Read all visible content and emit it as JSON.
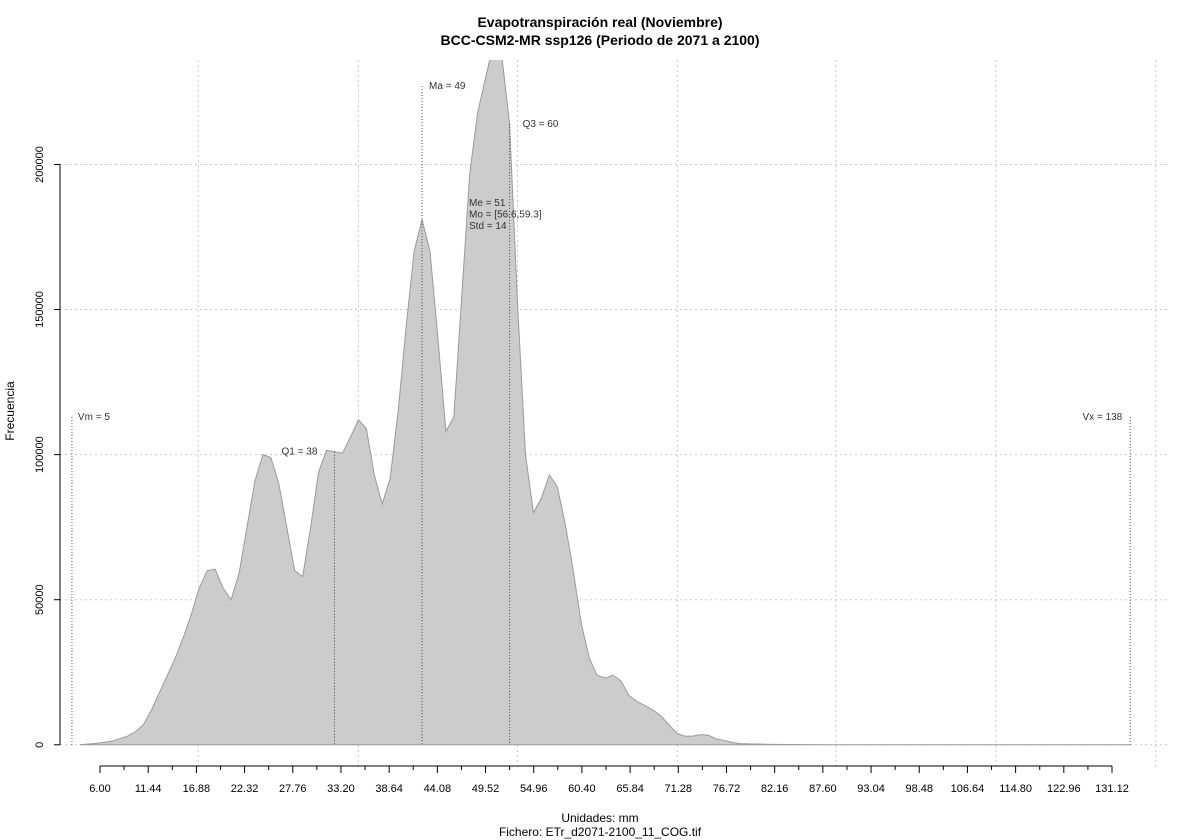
{
  "chart_data": {
    "type": "area",
    "title": "Evapotranspiración real (Noviembre)",
    "subtitle": "BCC-CSM2-MR ssp126 (Periodo de 2071 a 2100)",
    "xlabel": "Unidades: mm",
    "file_label": "Fichero: ETr_d2071-2100_11_COG.tif",
    "ylabel": "Frecuencia",
    "xlim": [
      3.5,
      143
    ],
    "ylim": [
      -8000,
      236000
    ],
    "x_ticks": [
      "6.00",
      "11.44",
      "16.88",
      "22.32",
      "27.76",
      "33.20",
      "38.64",
      "44.08",
      "49.52",
      "54.96",
      "60.40",
      "65.84",
      "71.28",
      "76.72",
      "82.16",
      "87.60",
      "93.04",
      "98.48",
      "106.64",
      "114.80",
      "122.96",
      "131.12"
    ],
    "y_ticks": [
      "0",
      "50000",
      "100000",
      "150000",
      "200000"
    ],
    "y_tick_values": [
      0,
      50000,
      100000,
      150000,
      200000
    ],
    "x_grid": [
      20.88,
      41,
      61,
      81.08,
      101,
      121.11,
      141.2
    ],
    "series": [
      {
        "x": [
          6,
          8,
          10,
          12,
          13,
          14,
          15,
          16,
          17,
          18,
          19,
          20,
          21,
          22,
          23,
          24,
          25,
          26,
          27,
          28,
          29,
          30,
          31,
          32,
          33,
          34,
          35,
          36,
          37,
          38,
          39,
          40,
          41,
          42,
          43,
          44,
          45,
          46,
          47,
          48,
          49,
          50,
          51,
          52,
          53,
          54,
          55,
          56,
          57,
          58,
          59,
          60,
          61,
          62,
          63,
          64,
          65,
          66,
          67,
          68,
          69,
          70,
          71,
          72,
          73,
          74,
          75,
          76,
          77,
          78,
          79,
          80,
          81,
          82,
          83,
          84,
          85,
          86,
          87,
          88,
          89,
          90,
          92,
          95,
          100,
          110,
          120,
          130,
          138
        ],
        "y": [
          0,
          500,
          1200,
          3000,
          4500,
          7000,
          12000,
          18000,
          24000,
          30000,
          37000,
          45000,
          54000,
          60000,
          60500,
          54000,
          50000,
          59000,
          75000,
          91000,
          100000,
          99000,
          90000,
          75000,
          60000,
          58000,
          75000,
          94000,
          101500,
          101000,
          100500,
          106000,
          112000,
          109000,
          93000,
          83000,
          92000,
          115000,
          144000,
          170000,
          181000,
          170000,
          140000,
          108000,
          113000,
          155000,
          197000,
          218000,
          230000,
          242000,
          238000,
          214000,
          152000,
          100000,
          80000,
          85000,
          93000,
          89000,
          76000,
          60000,
          42000,
          30000,
          24000,
          23000,
          24000,
          22000,
          17000,
          15000,
          13500,
          12000,
          10000,
          7000,
          4000,
          3000,
          3000,
          3500,
          3300,
          2000,
          1500,
          800,
          400,
          300,
          200,
          100,
          0,
          0,
          0,
          0,
          0
        ]
      }
    ],
    "stats": {
      "min": {
        "label": "Vm = 5",
        "x": 5,
        "y": 113000
      },
      "q1": {
        "label": "Q1 = 38",
        "x": 38,
        "y": 101000
      },
      "mean": {
        "label": "Ma = 49",
        "x": 49,
        "y": 227000
      },
      "q3": {
        "label": "Q3 = 60",
        "x": 60,
        "y": 214000
      },
      "max": {
        "label": "Vx = 138",
        "x": 138,
        "y": 113000
      },
      "block": [
        "Me = 51",
        "Mo = [56.6,59.3]",
        "Std = 14"
      ]
    },
    "grid": "dotted",
    "fill_color": "#cccccc",
    "line_color": "#9a9a9a",
    "grid_color": "#c8c8c8"
  }
}
